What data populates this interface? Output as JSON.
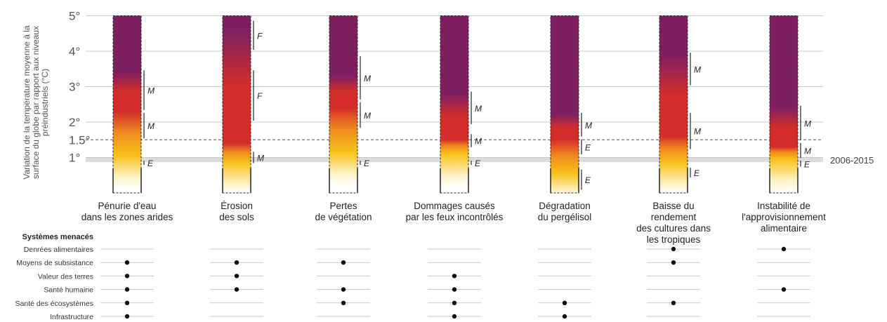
{
  "chart_data": {
    "type": "risk-bar",
    "axis_title": [
      "Variation de la température moyenne à la",
      "surface du globe par rapport aux niveaux",
      "préindustriels (°C)"
    ],
    "y_ticks": [
      {
        "value": 5,
        "label": "5°"
      },
      {
        "value": 4,
        "label": "4°"
      },
      {
        "value": 3,
        "label": "3°"
      },
      {
        "value": 2,
        "label": "2°"
      },
      {
        "value": 1.5,
        "label": "1.5°"
      },
      {
        "value": 1,
        "label": "1°"
      }
    ],
    "ylim": [
      0,
      5
    ],
    "reference_band": {
      "label": "2006-2015",
      "from": 0.87,
      "to": 1.0
    },
    "reference_line": 1.5,
    "risk_colors": {
      "undetectable": "#ffffff",
      "moderate": "#f7c21b",
      "high": "#d42e2a",
      "very_high": "#7e1f61"
    },
    "categories": [
      {
        "label": [
          "Pénurie d'eau",
          "dans les zones arides"
        ],
        "transitions": {
          "moderate": 0.8,
          "high": 2.3,
          "very_high": 3.4
        },
        "confidence": [
          {
            "from": 0.75,
            "to": 0.95,
            "level": "E"
          },
          {
            "from": 1.5,
            "to": 2.3,
            "level": "M"
          },
          {
            "from": 2.3,
            "to": 3.5,
            "level": "M"
          }
        ]
      },
      {
        "label": [
          "Érosion",
          "des sols"
        ],
        "transitions": {
          "moderate": 0.6,
          "high": 1.4,
          "very_high": 4.6
        },
        "confidence": [
          {
            "from": 0.8,
            "to": 1.2,
            "level": "M"
          },
          {
            "from": 2.0,
            "to": 3.5,
            "level": "F"
          },
          {
            "from": 4.0,
            "to": 4.9,
            "level": "F"
          }
        ]
      },
      {
        "label": [
          "Pertes",
          "de végétation"
        ],
        "transitions": {
          "moderate": 0.9,
          "high": 2.4,
          "very_high": 3.3
        },
        "confidence": [
          {
            "from": 0.75,
            "to": 0.95,
            "level": "E"
          },
          {
            "from": 1.8,
            "to": 2.6,
            "level": "M"
          },
          {
            "from": 2.6,
            "to": 3.9,
            "level": "M"
          }
        ]
      },
      {
        "label": [
          "Dommages causés",
          "par les feux incontrôlés"
        ],
        "transitions": {
          "moderate": 0.85,
          "high": 1.5,
          "very_high": 2.8
        },
        "confidence": [
          {
            "from": 0.75,
            "to": 0.95,
            "level": "E"
          },
          {
            "from": 1.25,
            "to": 1.7,
            "level": "M"
          },
          {
            "from": 1.9,
            "to": 2.9,
            "level": "M"
          }
        ]
      },
      {
        "label": [
          "Dégradation",
          "du pergélisol"
        ],
        "transitions": {
          "moderate": 0.3,
          "high": 1.5,
          "very_high": 2.2
        },
        "confidence": [
          {
            "from": 0.05,
            "to": 0.7,
            "level": "E"
          },
          {
            "from": 1.05,
            "to": 1.55,
            "level": "E"
          },
          {
            "from": 1.55,
            "to": 2.3,
            "level": "M"
          }
        ]
      },
      {
        "label": [
          "Baisse du",
          "rendement",
          "des cultures dans",
          "les tropiques"
        ],
        "transitions": {
          "moderate": 0.6,
          "high": 1.6,
          "very_high": 3.9
        },
        "confidence": [
          {
            "from": 0.4,
            "to": 0.75,
            "level": "E"
          },
          {
            "from": 1.2,
            "to": 2.3,
            "level": "M"
          },
          {
            "from": 3.0,
            "to": 4.0,
            "level": "M"
          }
        ]
      },
      {
        "label": [
          "Instabilité de",
          "l'approvisionnement",
          "alimentaire"
        ],
        "transitions": {
          "moderate": 0.7,
          "high": 1.3,
          "very_high": 2.4
        },
        "confidence": [
          {
            "from": 0.7,
            "to": 0.95,
            "level": "E"
          },
          {
            "from": 0.95,
            "to": 1.45,
            "level": "M"
          },
          {
            "from": 1.45,
            "to": 2.5,
            "level": "M"
          }
        ]
      }
    ],
    "systems_title": "Systèmes menacés",
    "systems": [
      {
        "label": "Denrées alimentaires",
        "marks": [
          false,
          false,
          false,
          false,
          false,
          true,
          true
        ]
      },
      {
        "label": "Moyens de subsistance",
        "marks": [
          true,
          true,
          true,
          false,
          false,
          true,
          false
        ]
      },
      {
        "label": "Valeur des terres",
        "marks": [
          true,
          true,
          false,
          true,
          false,
          false,
          false
        ]
      },
      {
        "label": "Santé humaine",
        "marks": [
          true,
          true,
          true,
          true,
          false,
          false,
          true
        ]
      },
      {
        "label": "Santé des écosystèmes",
        "marks": [
          true,
          false,
          true,
          true,
          true,
          true,
          false
        ]
      },
      {
        "label": "Infrastructure",
        "marks": [
          true,
          false,
          false,
          true,
          true,
          false,
          false
        ]
      }
    ]
  }
}
